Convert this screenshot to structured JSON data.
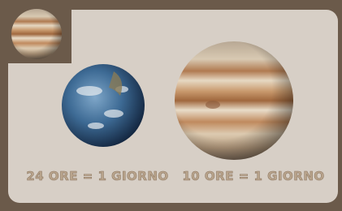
{
  "captions": {
    "earth": "24 ORE = 1 GIORNO",
    "jupiter": "10 ORE = 1 GIORNO"
  }
}
